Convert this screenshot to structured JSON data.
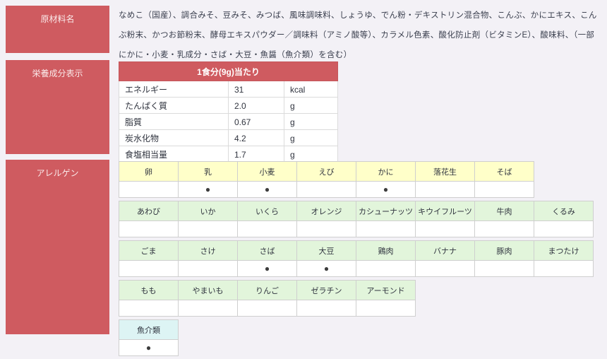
{
  "colors": {
    "accent": "#CF5B60",
    "page_bg": "#F3F1F6",
    "allergen_header_yellow": "#FFFFC9",
    "allergen_header_green": "#E2F5DB",
    "allergen_header_cyan": "#DDF4F4"
  },
  "sections": {
    "ingredients_label": "原材料名",
    "nutrition_label": "栄養成分表示",
    "allergen_label": "アレルゲン"
  },
  "ingredients": {
    "text": "なめこ（国産）、調合みそ、豆みそ、みつば、風味調味料、しょうゆ、でん粉・デキストリン混合物、こんぶ、かにエキス、こんぶ粉末、かつお節粉末、酵母エキスパウダー／調味料（アミノ酸等）、カラメル色素、酸化防止剤（ビタミンE）、酸味料、（一部にかに・小麦・乳成分・さば・大豆・魚醤（魚介類）を含む）"
  },
  "nutrition": {
    "header": "1食分(9g)当たり",
    "rows": [
      {
        "label": "エネルギー",
        "value": "31",
        "unit": "kcal"
      },
      {
        "label": "たんぱく質",
        "value": "2.0",
        "unit": "g"
      },
      {
        "label": "脂質",
        "value": "0.67",
        "unit": "g"
      },
      {
        "label": "炭水化物",
        "value": "4.2",
        "unit": "g"
      },
      {
        "label": "食塩相当量",
        "value": "1.7",
        "unit": "g"
      }
    ]
  },
  "allergens": {
    "mark_symbol": "●",
    "groups": [
      {
        "header_bg": "#FFFFC9",
        "items": [
          {
            "label": "卵",
            "mark": ""
          },
          {
            "label": "乳",
            "mark": "●"
          },
          {
            "label": "小麦",
            "mark": "●"
          },
          {
            "label": "えび",
            "mark": ""
          },
          {
            "label": "かに",
            "mark": "●"
          },
          {
            "label": "落花生",
            "mark": ""
          },
          {
            "label": "そば",
            "mark": ""
          }
        ]
      },
      {
        "header_bg": "#E2F5DB",
        "items": [
          {
            "label": "あわび",
            "mark": ""
          },
          {
            "label": "いか",
            "mark": ""
          },
          {
            "label": "いくら",
            "mark": ""
          },
          {
            "label": "オレンジ",
            "mark": ""
          },
          {
            "label": "カシューナッツ",
            "mark": ""
          },
          {
            "label": "キウイフルーツ",
            "mark": ""
          },
          {
            "label": "牛肉",
            "mark": ""
          },
          {
            "label": "くるみ",
            "mark": ""
          }
        ]
      },
      {
        "header_bg": "#E2F5DB",
        "items": [
          {
            "label": "ごま",
            "mark": ""
          },
          {
            "label": "さけ",
            "mark": ""
          },
          {
            "label": "さば",
            "mark": "●"
          },
          {
            "label": "大豆",
            "mark": "●"
          },
          {
            "label": "鶏肉",
            "mark": ""
          },
          {
            "label": "バナナ",
            "mark": ""
          },
          {
            "label": "豚肉",
            "mark": ""
          },
          {
            "label": "まつたけ",
            "mark": ""
          }
        ]
      },
      {
        "header_bg": "#E2F5DB",
        "items": [
          {
            "label": "もも",
            "mark": ""
          },
          {
            "label": "やまいも",
            "mark": ""
          },
          {
            "label": "りんご",
            "mark": ""
          },
          {
            "label": "ゼラチン",
            "mark": ""
          },
          {
            "label": "アーモンド",
            "mark": ""
          }
        ]
      },
      {
        "header_bg": "#DDF4F4",
        "items": [
          {
            "label": "魚介類",
            "mark": "●"
          }
        ]
      }
    ]
  }
}
